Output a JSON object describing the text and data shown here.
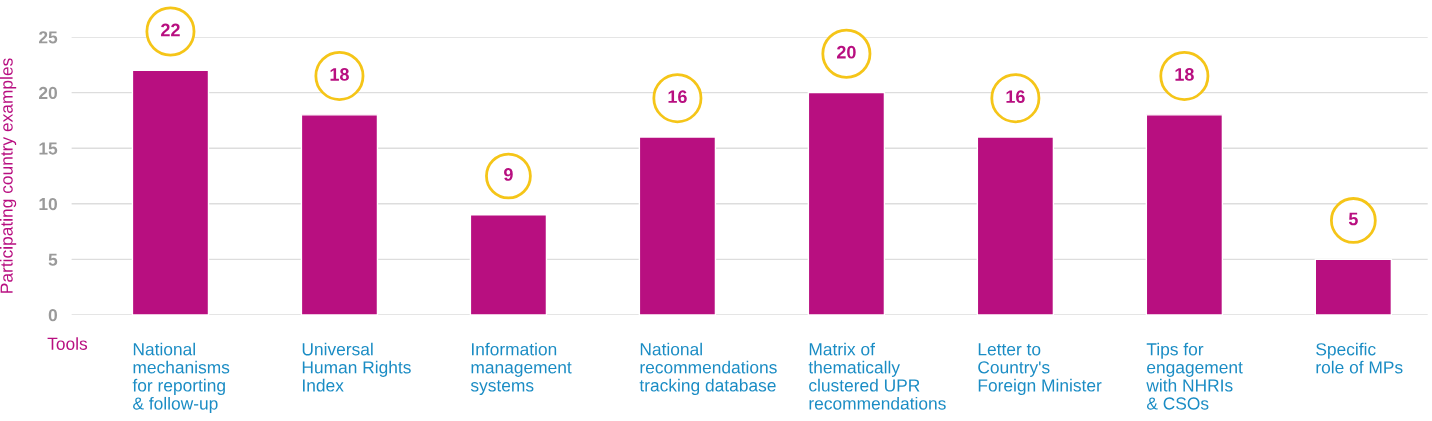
{
  "chart_data": {
    "type": "bar",
    "categories": [
      "National\nmechanisms\nfor reporting\n& follow-up",
      "Universal\nHuman Rights\nIndex",
      "Information\nmanagement\nsystems",
      "National\nrecommendations\ntracking database",
      "Matrix of\nthematically\nclustered UPR\nrecommendations",
      "Letter to\nCountry's\nForeign Minister",
      "Tips for\nengagement\nwith NHRIs\n& CSOs",
      "Specific\nrole of MPs"
    ],
    "values": [
      22,
      18,
      9,
      16,
      20,
      16,
      18,
      5
    ],
    "color": "#b80f80",
    "xlabel": "Tools",
    "ylabel": "Participating country examples",
    "ylim": [
      0,
      25
    ],
    "yticks": [
      0,
      5,
      10,
      15,
      20,
      25
    ],
    "grid": "y",
    "data_labels": true
  }
}
